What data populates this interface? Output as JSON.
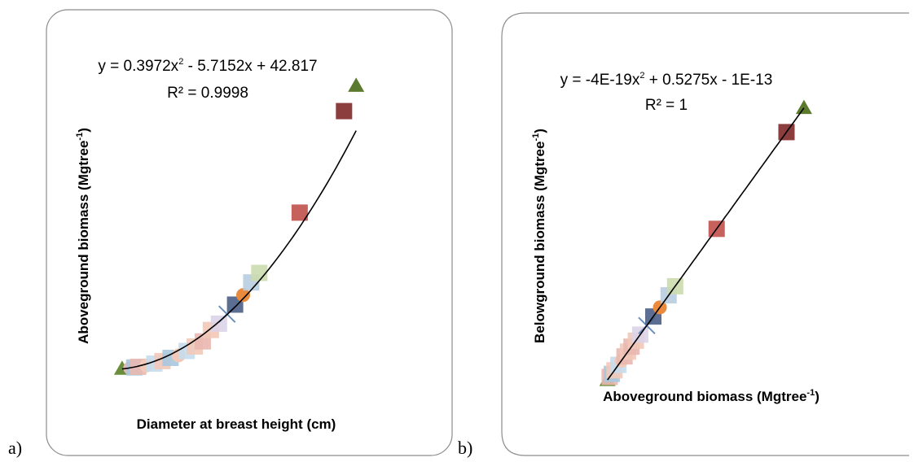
{
  "chart_data": [
    {
      "panel_label": "a)",
      "type": "scatter",
      "xlabel": "Diameter at breast height (cm)",
      "ylabel_main": "Aboveground biomass (Mgtree",
      "ylabel_sup": "-1",
      "ylabel_close": ")",
      "trendline": {
        "equation_lead": "y = 0.3972x",
        "equation_sup": "2",
        "equation_tail": " - 5.7152x + 42.817",
        "r2": "R² = 0.9998",
        "type": "polynomial",
        "coefficients": [
          0.3972,
          -5.7152,
          42.817
        ]
      },
      "xlim": [
        8,
        40
      ],
      "ylim": [
        0,
        500
      ],
      "points": [
        {
          "x": 9,
          "y": 24,
          "marker": "triangle",
          "color": "#6b8e3a"
        },
        {
          "x": 10,
          "y": 25,
          "marker": "circle",
          "color": "#e9b8b0"
        },
        {
          "x": 10.5,
          "y": 26,
          "marker": "square",
          "color": "#a9c8de"
        },
        {
          "x": 11,
          "y": 27,
          "marker": "square",
          "color": "#e9b8b0"
        },
        {
          "x": 12,
          "y": 29,
          "marker": "circle",
          "color": "#f2c9b8"
        },
        {
          "x": 13,
          "y": 32,
          "marker": "square",
          "color": "#c7dcec"
        },
        {
          "x": 14,
          "y": 36,
          "marker": "square",
          "color": "#f2c9b8"
        },
        {
          "x": 15,
          "y": 41,
          "marker": "square",
          "color": "#a9c8de"
        },
        {
          "x": 16,
          "y": 45,
          "marker": "circle",
          "color": "#f2c9b8"
        },
        {
          "x": 17,
          "y": 52,
          "marker": "square",
          "color": "#c7dcec"
        },
        {
          "x": 18,
          "y": 59,
          "marker": "square",
          "color": "#f2c9b8"
        },
        {
          "x": 19,
          "y": 67,
          "marker": "square",
          "color": "#e9b8b0"
        },
        {
          "x": 20,
          "y": 85,
          "marker": "square",
          "color": "#f2c9b8"
        },
        {
          "x": 21,
          "y": 95,
          "marker": "square",
          "color": "#dcd3e8"
        },
        {
          "x": 22,
          "y": 110,
          "marker": "x",
          "color": "#6b8fba"
        },
        {
          "x": 23,
          "y": 125,
          "marker": "square",
          "color": "#4a5f86"
        },
        {
          "x": 24,
          "y": 140,
          "marker": "circle",
          "color": "#e98a3c"
        },
        {
          "x": 25,
          "y": 160,
          "marker": "square",
          "color": "#b8cde0"
        },
        {
          "x": 26,
          "y": 175,
          "marker": "square",
          "color": "#cbdcae"
        },
        {
          "x": 31,
          "y": 270,
          "marker": "square",
          "color": "#c0504d"
        },
        {
          "x": 36.5,
          "y": 430,
          "marker": "square",
          "color": "#7f2828"
        },
        {
          "x": 38,
          "y": 470,
          "marker": "triangle",
          "color": "#5c7a2e"
        }
      ]
    },
    {
      "panel_label": "b)",
      "type": "scatter",
      "xlabel_main": "Aboveground biomass (Mgtree",
      "xlabel_sup": "-1",
      "xlabel_close": ")",
      "ylabel_main": "Belowground biomass (Mgtree",
      "ylabel_sup": "-1",
      "ylabel_close": ")",
      "trendline": {
        "equation_lead": "y = -4E-19x",
        "equation_sup": "2",
        "equation_tail": " + 0.5275x - 1E-13",
        "r2": "R² = 1",
        "type": "polynomial",
        "coefficients": [
          -4e-19,
          0.5275,
          -1e-13
        ]
      },
      "xlim": [
        0,
        500
      ],
      "ylim": [
        0,
        264
      ],
      "points": [
        {
          "x": 20,
          "y": 10.6,
          "marker": "triangle",
          "color": "#6b8e3a"
        },
        {
          "x": 25,
          "y": 13.2,
          "marker": "square",
          "color": "#e9b8b0"
        },
        {
          "x": 30,
          "y": 15.8,
          "marker": "square",
          "color": "#a9c8de"
        },
        {
          "x": 36,
          "y": 19.0,
          "marker": "square",
          "color": "#f2c9b8"
        },
        {
          "x": 45,
          "y": 23.7,
          "marker": "square",
          "color": "#c7dcec"
        },
        {
          "x": 52,
          "y": 27.4,
          "marker": "circle",
          "color": "#f2c9b8"
        },
        {
          "x": 59,
          "y": 31.1,
          "marker": "square",
          "color": "#e9b8b0"
        },
        {
          "x": 67,
          "y": 35.3,
          "marker": "square",
          "color": "#f2c9b8"
        },
        {
          "x": 75,
          "y": 39.6,
          "marker": "square",
          "color": "#e9b8b0"
        },
        {
          "x": 85,
          "y": 44.8,
          "marker": "square",
          "color": "#f2c9b8"
        },
        {
          "x": 95,
          "y": 50.1,
          "marker": "square",
          "color": "#dcd3e8"
        },
        {
          "x": 110,
          "y": 58.0,
          "marker": "x",
          "color": "#6b8fba"
        },
        {
          "x": 125,
          "y": 65.9,
          "marker": "square",
          "color": "#4a5f86"
        },
        {
          "x": 140,
          "y": 73.9,
          "marker": "circle",
          "color": "#e98a3c"
        },
        {
          "x": 160,
          "y": 84.4,
          "marker": "square",
          "color": "#b8cde0"
        },
        {
          "x": 175,
          "y": 92.3,
          "marker": "square",
          "color": "#cbdcae"
        },
        {
          "x": 270,
          "y": 142.4,
          "marker": "square",
          "color": "#c0504d"
        },
        {
          "x": 430,
          "y": 226.8,
          "marker": "square",
          "color": "#7f2828"
        },
        {
          "x": 470,
          "y": 247.9,
          "marker": "triangle",
          "color": "#5c7a2e"
        }
      ]
    }
  ]
}
